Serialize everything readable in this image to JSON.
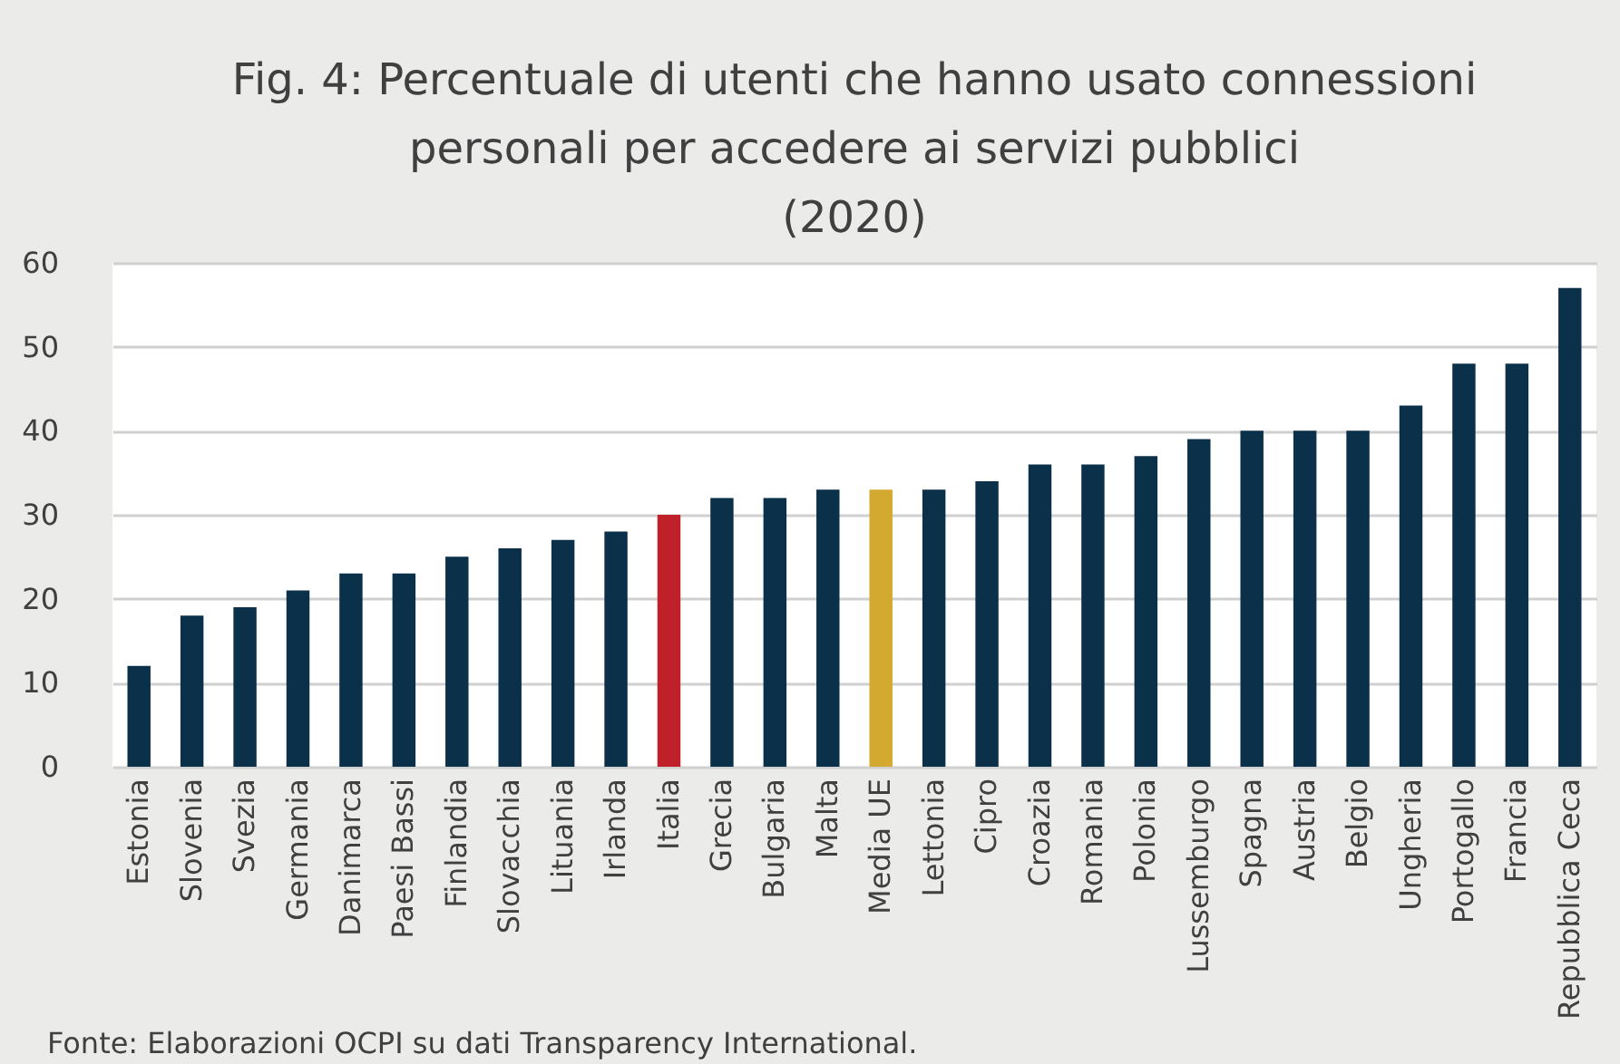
{
  "chart_data": {
    "type": "bar",
    "title": "Fig. 4: Percentuale di utenti che hanno usato connessioni personali per accedere ai servizi pubblici",
    "subtitle": "(2020)",
    "categories": [
      "Estonia",
      "Slovenia",
      "Svezia",
      "Germania",
      "Danimarca",
      "Paesi Bassi",
      "Finlandia",
      "Slovacchia",
      "Lituania",
      "Irlanda",
      "Italia",
      "Grecia",
      "Bulgaria",
      "Malta",
      "Media UE",
      "Lettonia",
      "Cipro",
      "Croazia",
      "Romania",
      "Polonia",
      "Lussemburgo",
      "Spagna",
      "Austria",
      "Belgio",
      "Ungheria",
      "Portogallo",
      "Francia",
      "Repubblica Ceca"
    ],
    "values": [
      12,
      18,
      19,
      21,
      23,
      23,
      25,
      26,
      27,
      28,
      30,
      32,
      32,
      33,
      33,
      33,
      34,
      36,
      36,
      37,
      39,
      40,
      40,
      40,
      43,
      48,
      48,
      57
    ],
    "colors": [
      "#0b3049",
      "#0b3049",
      "#0b3049",
      "#0b3049",
      "#0b3049",
      "#0b3049",
      "#0b3049",
      "#0b3049",
      "#0b3049",
      "#0b3049",
      "#c0202a",
      "#0b3049",
      "#0b3049",
      "#0b3049",
      "#d4a930",
      "#0b3049",
      "#0b3049",
      "#0b3049",
      "#0b3049",
      "#0b3049",
      "#0b3049",
      "#0b3049",
      "#0b3049",
      "#0b3049",
      "#0b3049",
      "#0b3049",
      "#0b3049",
      "#0b3049"
    ],
    "ylim": [
      0,
      60
    ],
    "yticks": [
      0,
      10,
      20,
      30,
      40,
      50,
      60
    ],
    "grid": "y",
    "annotations": [
      "Fonte: Elaborazioni OCPI su dati Transparency International."
    ]
  }
}
